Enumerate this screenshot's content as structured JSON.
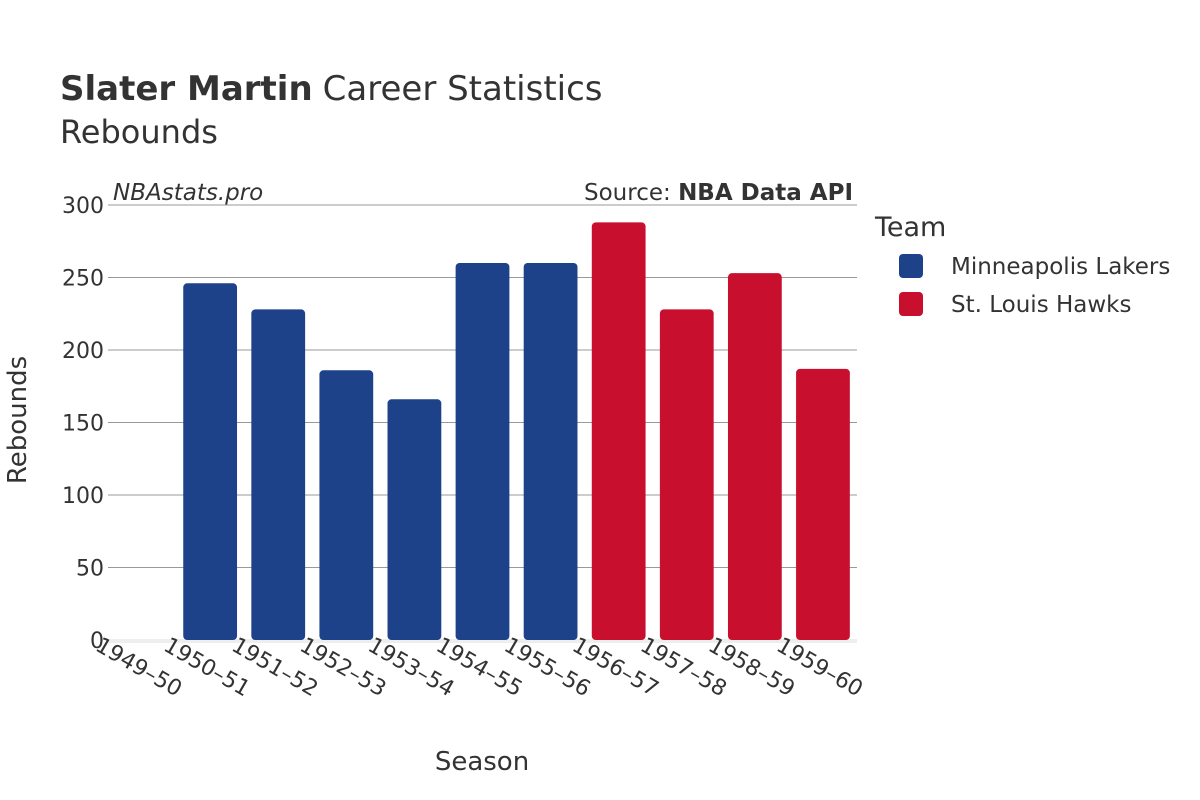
{
  "header": {
    "title_bold": "Slater Martin",
    "title_rest": "Career Statistics",
    "subtitle": "Rebounds",
    "watermark": "NBAstats.pro",
    "source_prefix": "Source: ",
    "source_name": "NBA Data API"
  },
  "legend": {
    "title": "Team",
    "items": [
      {
        "label": "Minneapolis Lakers",
        "color": "#1d428a"
      },
      {
        "label": "St. Louis Hawks",
        "color": "#c8102e"
      }
    ]
  },
  "chart_data": {
    "type": "bar",
    "title": "Slater Martin Career Statistics",
    "subtitle": "Rebounds",
    "xlabel": "Season",
    "ylabel": "Rebounds",
    "ylim": [
      0,
      300
    ],
    "yticks": [
      0,
      50,
      100,
      150,
      200,
      250,
      300
    ],
    "grid": true,
    "legend_position": "right",
    "categories": [
      "1949–50",
      "1950–51",
      "1951–52",
      "1952–53",
      "1953–54",
      "1954–55",
      "1955–56",
      "1956–57",
      "1957–58",
      "1958–59",
      "1959–60"
    ],
    "series": [
      {
        "name": "Minneapolis Lakers",
        "color": "#1d428a",
        "values": [
          null,
          246,
          228,
          186,
          166,
          260,
          260,
          null,
          null,
          null,
          null
        ]
      },
      {
        "name": "St. Louis Hawks",
        "color": "#c8102e",
        "values": [
          null,
          null,
          null,
          null,
          null,
          null,
          null,
          288,
          228,
          253,
          187
        ]
      }
    ]
  }
}
